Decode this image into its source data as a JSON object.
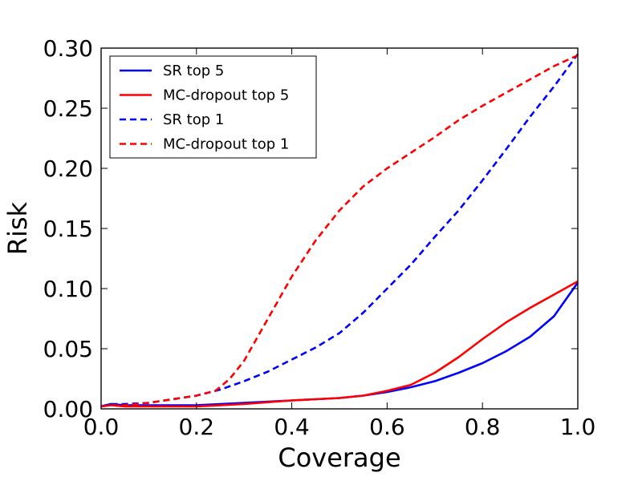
{
  "chart_data": {
    "type": "line",
    "title": "",
    "xlabel": "Coverage",
    "ylabel": "Risk",
    "xlim": [
      0.0,
      1.0
    ],
    "ylim": [
      0.0,
      0.3
    ],
    "xticks": [
      "0.0",
      "0.2",
      "0.4",
      "0.6",
      "0.8",
      "1.0"
    ],
    "yticks": [
      "0.00",
      "0.05",
      "0.10",
      "0.15",
      "0.20",
      "0.25",
      "0.30"
    ],
    "grid": false,
    "legend_position": "top-left",
    "series": [
      {
        "name": "SR top 5",
        "color": "#0000ff",
        "style": "solid",
        "x": [
          0.0,
          0.02,
          0.05,
          0.1,
          0.2,
          0.3,
          0.4,
          0.5,
          0.55,
          0.6,
          0.65,
          0.7,
          0.75,
          0.8,
          0.85,
          0.9,
          0.95,
          1.0
        ],
        "y": [
          0.002,
          0.004,
          0.003,
          0.003,
          0.003,
          0.005,
          0.007,
          0.009,
          0.011,
          0.014,
          0.018,
          0.023,
          0.03,
          0.038,
          0.048,
          0.06,
          0.077,
          0.105
        ]
      },
      {
        "name": "MC-dropout top 5",
        "color": "#ff0000",
        "style": "solid",
        "x": [
          0.0,
          0.02,
          0.05,
          0.1,
          0.2,
          0.3,
          0.4,
          0.5,
          0.55,
          0.6,
          0.65,
          0.7,
          0.75,
          0.8,
          0.85,
          0.9,
          0.95,
          1.0
        ],
        "y": [
          0.002,
          0.003,
          0.002,
          0.002,
          0.002,
          0.004,
          0.007,
          0.009,
          0.011,
          0.015,
          0.02,
          0.03,
          0.043,
          0.058,
          0.072,
          0.084,
          0.095,
          0.106
        ]
      },
      {
        "name": "SR top 1",
        "color": "#0000ff",
        "style": "dashed",
        "x": [
          0.0,
          0.02,
          0.05,
          0.1,
          0.15,
          0.2,
          0.25,
          0.3,
          0.35,
          0.4,
          0.45,
          0.5,
          0.55,
          0.6,
          0.65,
          0.7,
          0.75,
          0.8,
          0.85,
          0.9,
          0.95,
          1.0
        ],
        "y": [
          0.002,
          0.004,
          0.004,
          0.005,
          0.008,
          0.011,
          0.016,
          0.023,
          0.031,
          0.041,
          0.051,
          0.063,
          0.08,
          0.1,
          0.12,
          0.143,
          0.165,
          0.19,
          0.216,
          0.243,
          0.268,
          0.295
        ]
      },
      {
        "name": "MC-dropout top 1",
        "color": "#ff0000",
        "style": "dashed",
        "x": [
          0.0,
          0.02,
          0.05,
          0.1,
          0.15,
          0.2,
          0.24,
          0.27,
          0.3,
          0.35,
          0.4,
          0.45,
          0.5,
          0.55,
          0.6,
          0.65,
          0.7,
          0.75,
          0.8,
          0.85,
          0.9,
          0.95,
          1.0
        ],
        "y": [
          0.002,
          0.003,
          0.003,
          0.005,
          0.008,
          0.011,
          0.015,
          0.025,
          0.04,
          0.075,
          0.11,
          0.14,
          0.165,
          0.185,
          0.2,
          0.213,
          0.226,
          0.24,
          0.252,
          0.263,
          0.274,
          0.285,
          0.294
        ]
      }
    ]
  }
}
